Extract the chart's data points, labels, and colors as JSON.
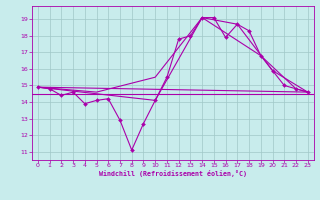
{
  "bg_color": "#c8ecec",
  "grid_color": "#a0c8c8",
  "line_color": "#aa00aa",
  "xlabel": "Windchill (Refroidissement éolien,°C)",
  "xlim": [
    -0.5,
    23.5
  ],
  "ylim": [
    10.5,
    19.8
  ],
  "yticks": [
    11,
    12,
    13,
    14,
    15,
    16,
    17,
    18,
    19
  ],
  "xticks": [
    0,
    1,
    2,
    3,
    4,
    5,
    6,
    7,
    8,
    9,
    10,
    11,
    12,
    13,
    14,
    15,
    16,
    17,
    18,
    19,
    20,
    21,
    22,
    23
  ],
  "line1_x": [
    0,
    1,
    2,
    3,
    4,
    5,
    6,
    7,
    8,
    9,
    10,
    11,
    12,
    13,
    14,
    15,
    16,
    17,
    18,
    19,
    20,
    21,
    22,
    23
  ],
  "line1_y": [
    14.9,
    14.8,
    14.4,
    14.6,
    13.9,
    14.1,
    14.2,
    12.9,
    11.1,
    12.7,
    14.1,
    15.5,
    17.8,
    18.0,
    19.1,
    19.1,
    17.9,
    18.7,
    18.3,
    16.8,
    15.9,
    15.0,
    14.8,
    14.6
  ],
  "line2_x": [
    0,
    23
  ],
  "line2_y": [
    14.9,
    14.6
  ],
  "line3_x": [
    0,
    10,
    14,
    19,
    22,
    23
  ],
  "line3_y": [
    14.9,
    14.1,
    19.1,
    16.8,
    14.8,
    14.6
  ],
  "line4_x": [
    0,
    5,
    10,
    14,
    17,
    20,
    23
  ],
  "line4_y": [
    14.9,
    14.6,
    15.5,
    19.1,
    18.7,
    15.9,
    14.6
  ],
  "hline_y": 14.5
}
